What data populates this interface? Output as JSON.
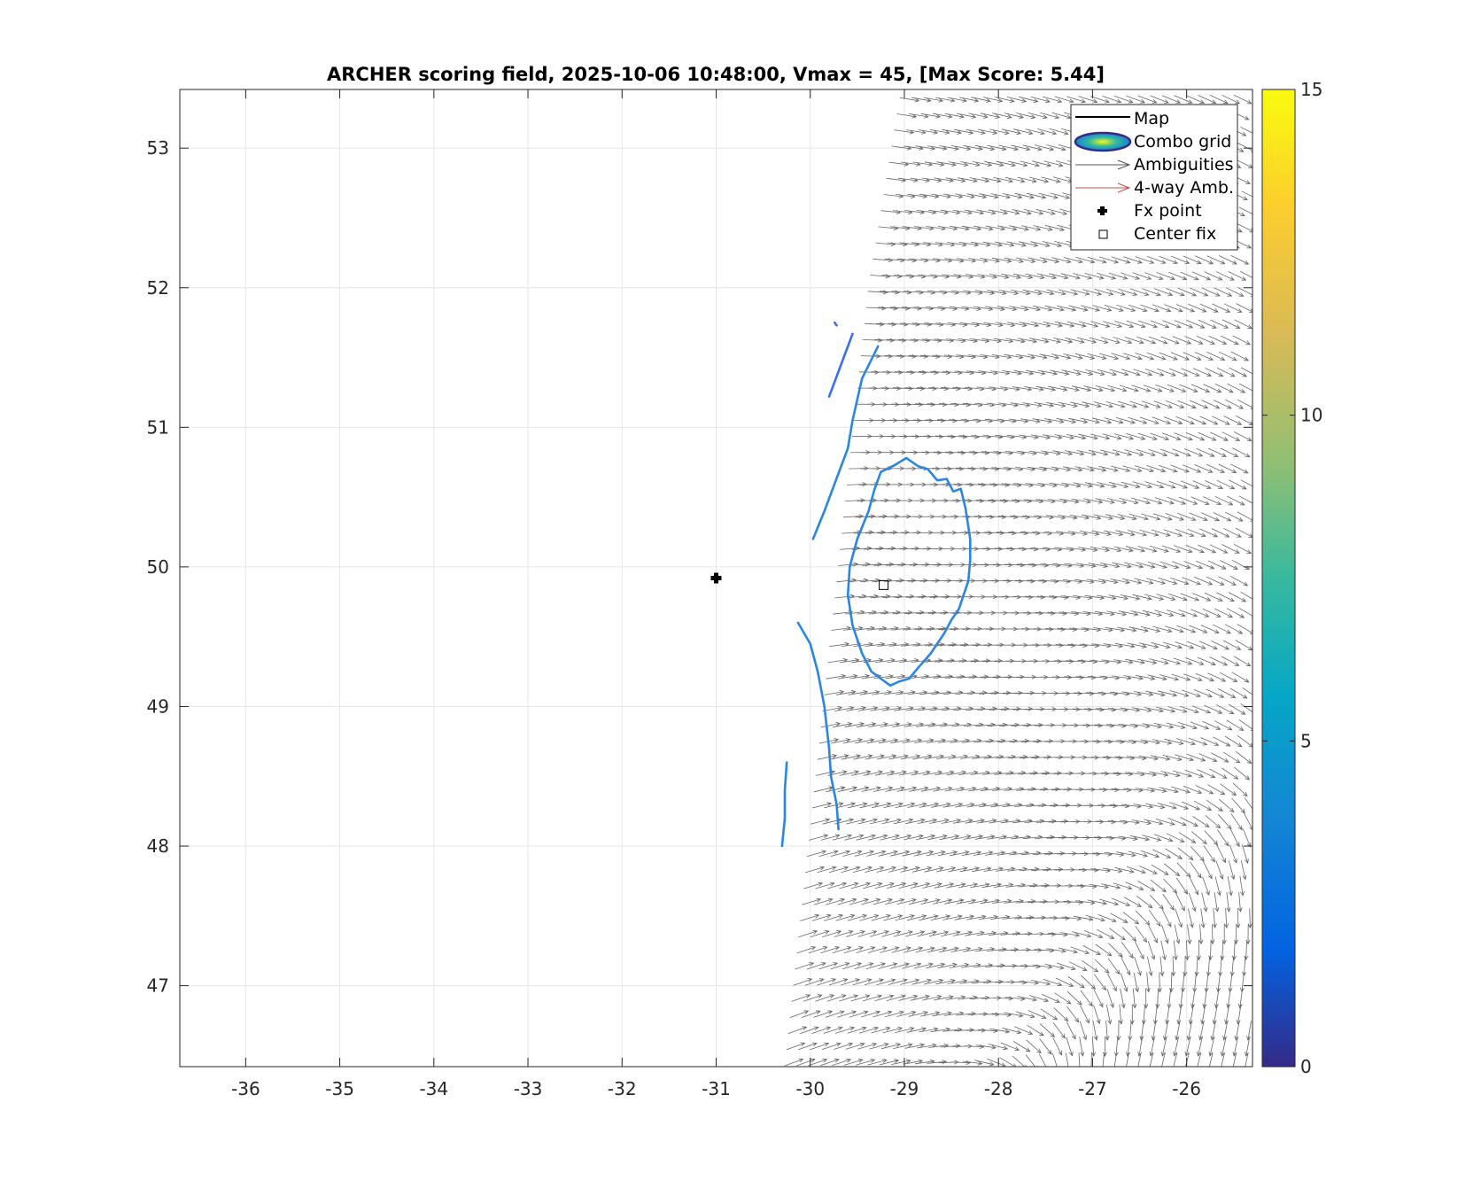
{
  "chart_data": {
    "type": "map-quiver-contour",
    "title": "ARCHER scoring field, 2025-10-06 10:48:00, Vmax = 45, [Max Score: 5.44]",
    "xlim": [
      -36.7,
      -25.3
    ],
    "ylim": [
      46.42,
      53.42
    ],
    "xticks": [
      -36,
      -35,
      -34,
      -33,
      -32,
      -31,
      -30,
      -29,
      -28,
      -27,
      -26
    ],
    "yticks": [
      47,
      48,
      49,
      50,
      51,
      52,
      53
    ],
    "grid": true,
    "colorbar": {
      "min": 0,
      "max": 15,
      "ticks": [
        0,
        5,
        10,
        15
      ],
      "colormap": "parula"
    },
    "legend": {
      "placement": "top-right",
      "entries": [
        "Map",
        "Combo grid",
        "Ambiguities",
        "4-way Amb.",
        "Fx point",
        "Center fix"
      ]
    },
    "fx_point": {
      "lon": -31.0,
      "lat": 49.92
    },
    "center_fix": {
      "lon": -29.22,
      "lat": 49.87
    },
    "vortex": {
      "lon": -25.4,
      "lat": 48.3
    },
    "swath_west_edge": [
      [
        -30.2,
        46.42
      ],
      [
        -29.3,
        52.0
      ],
      [
        -28.95,
        53.42
      ]
    ],
    "contours": [
      {
        "level": 4.5,
        "points": [
          [
            -30.25,
            48.6
          ],
          [
            -30.27,
            48.4
          ],
          [
            -30.27,
            48.2
          ],
          [
            -30.3,
            48.0
          ]
        ]
      },
      {
        "level": 4.5,
        "points": [
          [
            -29.7,
            48.12
          ],
          [
            -29.72,
            48.3
          ],
          [
            -29.78,
            48.5
          ],
          [
            -29.8,
            48.7
          ],
          [
            -29.85,
            49.0
          ],
          [
            -29.92,
            49.25
          ],
          [
            -30.0,
            49.45
          ],
          [
            -30.13,
            49.6
          ]
        ]
      },
      {
        "level": 4.6,
        "points": [
          [
            -29.97,
            50.2
          ],
          [
            -29.85,
            50.4
          ],
          [
            -29.7,
            50.67
          ],
          [
            -29.6,
            50.85
          ],
          [
            -29.55,
            51.05
          ],
          [
            -29.45,
            51.35
          ],
          [
            -29.28,
            51.58
          ]
        ]
      },
      {
        "level": 4.2,
        "points": [
          [
            -29.8,
            51.22
          ],
          [
            -29.7,
            51.4
          ],
          [
            -29.55,
            51.67
          ]
        ]
      },
      {
        "level": 4.0,
        "points": [
          [
            -29.74,
            51.75
          ],
          [
            -29.72,
            51.73
          ]
        ]
      },
      {
        "level": 5.0,
        "closed": true,
        "points": [
          [
            -29.25,
            50.68
          ],
          [
            -29.1,
            50.73
          ],
          [
            -28.98,
            50.78
          ],
          [
            -28.85,
            50.72
          ],
          [
            -28.75,
            50.7
          ],
          [
            -28.65,
            50.62
          ],
          [
            -28.55,
            50.63
          ],
          [
            -28.48,
            50.54
          ],
          [
            -28.4,
            50.56
          ],
          [
            -28.35,
            50.42
          ],
          [
            -28.3,
            50.2
          ],
          [
            -28.3,
            50.05
          ],
          [
            -28.32,
            49.9
          ],
          [
            -28.42,
            49.7
          ],
          [
            -28.5,
            49.62
          ],
          [
            -28.58,
            49.52
          ],
          [
            -28.72,
            49.38
          ],
          [
            -28.85,
            49.28
          ],
          [
            -28.95,
            49.2
          ],
          [
            -29.05,
            49.18
          ],
          [
            -29.15,
            49.15
          ],
          [
            -29.25,
            49.2
          ],
          [
            -29.35,
            49.25
          ],
          [
            -29.45,
            49.38
          ],
          [
            -29.55,
            49.58
          ],
          [
            -29.6,
            49.8
          ],
          [
            -29.58,
            50.0
          ],
          [
            -29.5,
            50.2
          ],
          [
            -29.38,
            50.4
          ],
          [
            -29.32,
            50.55
          ]
        ]
      }
    ]
  }
}
